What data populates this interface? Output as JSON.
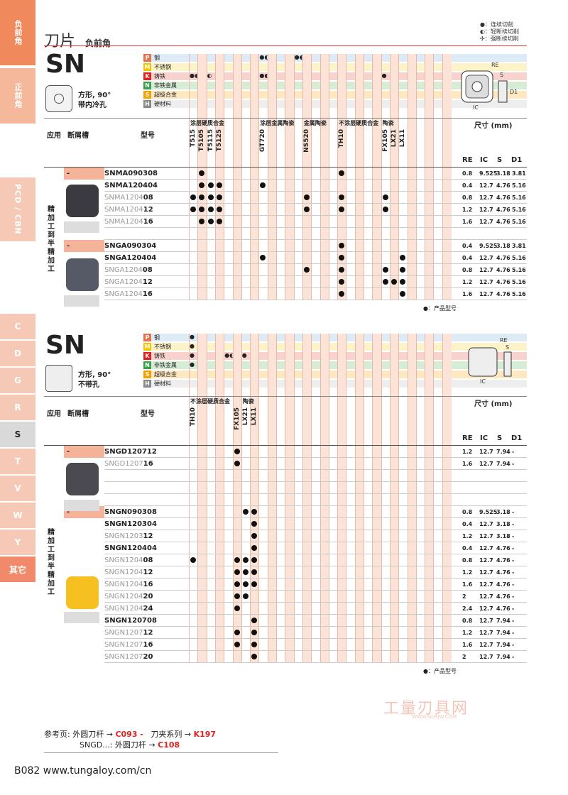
{
  "sidebar_tabs": [
    {
      "label": "负前角",
      "color": "#f08a5d"
    },
    {
      "label": "正前角",
      "color": "#f5b89b"
    },
    {
      "label": "PCD / CBN",
      "color": "#f5c9b5"
    }
  ],
  "letter_tabs": [
    "C",
    "D",
    "G",
    "R",
    "S",
    "T",
    "V",
    "W",
    "Y",
    "其它"
  ],
  "active_letter": "S",
  "header": {
    "title": "刀片",
    "subtitle": "负前角"
  },
  "legend": [
    "●：连续切削",
    "◐：轻断续切削",
    "✣：强断续切削"
  ],
  "section1": {
    "code": "SN",
    "shape": "方形, 90°",
    "hole": "带内冷孔",
    "materials": [
      {
        "letter": "P",
        "name": "钢",
        "color": "#e8704a",
        "bg": "#dcebf5"
      },
      {
        "letter": "M",
        "name": "不锈钢",
        "color": "#f5c400",
        "bg": "#fdf3c8"
      },
      {
        "letter": "K",
        "name": "铸铁",
        "color": "#e02020",
        "bg": "#f8d2cd"
      },
      {
        "letter": "N",
        "name": "非铁金属",
        "color": "#3aa14a",
        "bg": "#d6ecd4"
      },
      {
        "letter": "S",
        "name": "超级合金",
        "color": "#f5a000",
        "bg": "#fde8c2"
      },
      {
        "letter": "H",
        "name": "硬材料",
        "color": "#888888",
        "bg": "#eeeeee"
      }
    ],
    "mat_marks": [
      {
        "row": 0,
        "cols": [
          8,
          12,
          17
        ],
        "text": [
          "●◐",
          "●◐",
          "●"
        ]
      },
      {
        "row": 1,
        "cols": [
          17
        ],
        "text": [
          "●"
        ]
      },
      {
        "row": 2,
        "cols": [
          0,
          1,
          2,
          3,
          8,
          17,
          21,
          22
        ],
        "text": [
          "●◐",
          "●",
          "◐",
          "✣",
          "●◐",
          "●",
          "●◐",
          "●"
        ]
      },
      {
        "row": 3,
        "cols": [
          17
        ],
        "text": [
          "●"
        ]
      },
      {
        "row": 5,
        "cols": [
          25
        ],
        "text": [
          "●"
        ]
      }
    ],
    "group_headers": [
      "涂层硬质合金",
      "涂层金属陶瓷",
      "金属陶瓷",
      "不涂层硬质合金",
      "陶瓷"
    ],
    "grades": [
      "T515",
      "T5105",
      "T5115",
      "T5125",
      "GT720",
      "NS520",
      "TH10",
      "FX105",
      "LX21",
      "LX11"
    ],
    "col_labels": {
      "app": "应用",
      "chip": "断屑槽",
      "model": "型号",
      "size": "尺寸 (mm)",
      "re": "RE",
      "ic": "IC",
      "s": "S",
      "d1": "D1"
    },
    "application": "精加工到半精加工",
    "rows": [
      {
        "pre": "",
        "bold": "SNMA090308",
        "dots": [
          1,
          6
        ],
        "re": "0.8",
        "ic": "9.525",
        "s": "3.18",
        "d1": "3.81",
        "band": "-"
      },
      {
        "pre": "",
        "bold": "SNMA120404",
        "dots": [
          1,
          2,
          3,
          4
        ],
        "re": "0.4",
        "ic": "12.7",
        "s": "4.76",
        "d1": "5.16"
      },
      {
        "pre": "SNMA1204",
        "bold": "08",
        "dots": [
          0,
          1,
          2,
          3,
          5,
          6,
          7
        ],
        "re": "0.8",
        "ic": "12.7",
        "s": "4.76",
        "d1": "5.16"
      },
      {
        "pre": "SNMA1204",
        "bold": "12",
        "dots": [
          0,
          1,
          2,
          3,
          5,
          6,
          7
        ],
        "re": "1.2",
        "ic": "12.7",
        "s": "4.76",
        "d1": "5.16"
      },
      {
        "pre": "SNMA1204",
        "bold": "16",
        "dots": [
          1,
          2,
          3
        ],
        "re": "1.6",
        "ic": "12.7",
        "s": "4.76",
        "d1": "5.16"
      },
      {
        "pre": "",
        "bold": "",
        "dots": [],
        "re": "",
        "ic": "",
        "s": "",
        "d1": ""
      },
      {
        "pre": "",
        "bold": "SNGA090304",
        "dots": [
          6
        ],
        "re": "0.4",
        "ic": "9.525",
        "s": "3.18",
        "d1": "3.81",
        "band": "-"
      },
      {
        "pre": "",
        "bold": "SNGA120404",
        "dots": [
          4,
          6,
          9
        ],
        "re": "0.4",
        "ic": "12.7",
        "s": "4.76",
        "d1": "5.16"
      },
      {
        "pre": "SNGA1204",
        "bold": "08",
        "dots": [
          5,
          6,
          7,
          9
        ],
        "re": "0.8",
        "ic": "12.7",
        "s": "4.76",
        "d1": "5.16"
      },
      {
        "pre": "SNGA1204",
        "bold": "12",
        "dots": [
          6,
          7,
          8,
          9
        ],
        "re": "1.2",
        "ic": "12.7",
        "s": "4.76",
        "d1": "5.16"
      },
      {
        "pre": "SNGA1204",
        "bold": "16",
        "dots": [
          6,
          9
        ],
        "re": "1.6",
        "ic": "12.7",
        "s": "4.76",
        "d1": "5.16"
      }
    ],
    "note": "●：产品型号"
  },
  "section2": {
    "code": "SN",
    "shape": "方形, 90°",
    "hole": "不带孔",
    "mat_marks": [
      {
        "row": 0,
        "cols": [
          0
        ],
        "text": [
          "●"
        ]
      },
      {
        "row": 1,
        "cols": [
          0
        ],
        "text": [
          "●"
        ]
      },
      {
        "row": 2,
        "cols": [
          0,
          4,
          6
        ],
        "text": [
          "●",
          "●◐",
          "●"
        ]
      },
      {
        "row": 3,
        "cols": [
          0
        ],
        "text": [
          "●"
        ]
      },
      {
        "row": 5,
        "cols": [
          7
        ],
        "text": [
          "●"
        ]
      }
    ],
    "group_headers": [
      "不涂层硬质合金",
      "陶瓷"
    ],
    "grades": [
      "TH10",
      "FX105",
      "LX21",
      "LX11"
    ],
    "rows": [
      {
        "pre": "",
        "bold": "SNGD120712",
        "dots": [
          1
        ],
        "re": "1.2",
        "ic": "12.7",
        "s": "7.94",
        "d1": "-",
        "band": "-"
      },
      {
        "pre": "SNGD1207",
        "bold": "16",
        "dots": [
          1
        ],
        "re": "1.6",
        "ic": "12.7",
        "s": "7.94",
        "d1": "-"
      },
      {
        "pre": "",
        "bold": "",
        "dots": [],
        "re": "",
        "ic": "",
        "s": "",
        "d1": ""
      },
      {
        "pre": "",
        "bold": "",
        "dots": [],
        "re": "",
        "ic": "",
        "s": "",
        "d1": ""
      },
      {
        "pre": "",
        "bold": "",
        "dots": [],
        "re": "",
        "ic": "",
        "s": "",
        "d1": ""
      },
      {
        "pre": "",
        "bold": "SNGN090308",
        "dots": [
          2,
          3
        ],
        "re": "0.8",
        "ic": "9.525",
        "s": "3.18",
        "d1": "-",
        "band": "-"
      },
      {
        "pre": "",
        "bold": "SNGN120304",
        "dots": [
          3
        ],
        "re": "0.4",
        "ic": "12.7",
        "s": "3.18",
        "d1": "-"
      },
      {
        "pre": "SNGN1203",
        "bold": "12",
        "dots": [
          3
        ],
        "re": "1.2",
        "ic": "12.7",
        "s": "3.18",
        "d1": "-"
      },
      {
        "pre": "",
        "bold": "SNGN120404",
        "dots": [
          3
        ],
        "re": "0.4",
        "ic": "12.7",
        "s": "4.76",
        "d1": "-"
      },
      {
        "pre": "SNGN1204",
        "bold": "08",
        "dots": [
          0,
          1,
          2,
          3
        ],
        "re": "0.8",
        "ic": "12.7",
        "s": "4.76",
        "d1": "-"
      },
      {
        "pre": "SNGN1204",
        "bold": "12",
        "dots": [
          1,
          2,
          3
        ],
        "re": "1.2",
        "ic": "12.7",
        "s": "4.76",
        "d1": "-"
      },
      {
        "pre": "SNGN1204",
        "bold": "16",
        "dots": [
          1,
          2,
          3
        ],
        "re": "1.6",
        "ic": "12.7",
        "s": "4.76",
        "d1": "-"
      },
      {
        "pre": "SNGN1204",
        "bold": "20",
        "dots": [
          1,
          2
        ],
        "re": "2",
        "ic": "12.7",
        "s": "4.76",
        "d1": "-"
      },
      {
        "pre": "SNGN1204",
        "bold": "24",
        "dots": [
          1
        ],
        "re": "2.4",
        "ic": "12.7",
        "s": "4.76",
        "d1": "-"
      },
      {
        "pre": "",
        "bold": "SNGN120708",
        "dots": [
          3
        ],
        "re": "0.8",
        "ic": "12.7",
        "s": "7.94",
        "d1": "-"
      },
      {
        "pre": "SNGN1207",
        "bold": "12",
        "dots": [
          1,
          3
        ],
        "re": "1.2",
        "ic": "12.7",
        "s": "7.94",
        "d1": "-"
      },
      {
        "pre": "SNGN1207",
        "bold": "16",
        "dots": [
          1,
          3
        ],
        "re": "1.6",
        "ic": "12.7",
        "s": "7.94",
        "d1": "-"
      },
      {
        "pre": "SNGN1207",
        "bold": "20",
        "dots": [
          3
        ],
        "re": "2",
        "ic": "12.7",
        "s": "7.94",
        "d1": "-"
      }
    ],
    "note": "●：产品型号"
  },
  "reference": {
    "label": "参考页:",
    "item1": "外圆刀杆",
    "ref1": "C093 -",
    "item2": "刀夹系列",
    "ref2": "K197",
    "item3": "SNGD...: 外圆刀杆",
    "ref3": "C108"
  },
  "watermark": {
    "text": "工量刃具网",
    "url": "WWW.GLRJW.COM"
  },
  "footer": {
    "page": "B082",
    "url": "www.tungaloy.com/cn"
  }
}
